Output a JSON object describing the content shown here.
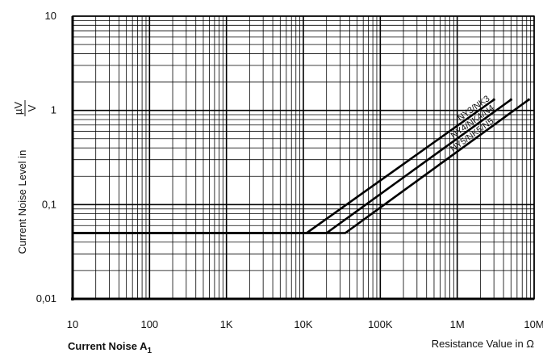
{
  "chart_data": {
    "type": "line",
    "title": "Current Noise A",
    "title_sub": "1",
    "xlabel": "Resistance Value in Ω",
    "ylabel": {
      "prefix": "Current Noise Level in",
      "unit_numerator": "µV",
      "unit_denominator": "V"
    },
    "x_scale": "log",
    "y_scale": "log",
    "xlim": [
      10,
      10000000
    ],
    "ylim": [
      0.01,
      10
    ],
    "grid": true,
    "x_ticks": [
      {
        "value": 10,
        "label": "10"
      },
      {
        "value": 100,
        "label": "100"
      },
      {
        "value": 1000,
        "label": "1K"
      },
      {
        "value": 10000,
        "label": "10K"
      },
      {
        "value": 100000,
        "label": "100K"
      },
      {
        "value": 1000000,
        "label": "1M"
      },
      {
        "value": 10000000,
        "label": "10M"
      }
    ],
    "y_ticks": [
      {
        "value": 0.01,
        "label": "0,01"
      },
      {
        "value": 0.1,
        "label": "0,1"
      },
      {
        "value": 1,
        "label": "1"
      },
      {
        "value": 10,
        "label": "10"
      }
    ],
    "series": [
      {
        "name": "NY3/NK3",
        "points": [
          [
            10,
            0.05
          ],
          [
            11000,
            0.05
          ],
          [
            3000000,
            1.3
          ]
        ]
      },
      {
        "name": "NY4/NK4/N4",
        "points": [
          [
            10,
            0.05
          ],
          [
            20000,
            0.05
          ],
          [
            5000000,
            1.3
          ]
        ]
      },
      {
        "name": "NY5/NK5/N5",
        "points": [
          [
            10,
            0.05
          ],
          [
            35000,
            0.05
          ],
          [
            8500000,
            1.3
          ]
        ]
      }
    ],
    "end_markers": [
      {
        "x": 3000000,
        "y": 1.3
      },
      {
        "x": 5000000,
        "y": 1.3
      },
      {
        "x": 8500000,
        "y": 1.3
      }
    ]
  }
}
